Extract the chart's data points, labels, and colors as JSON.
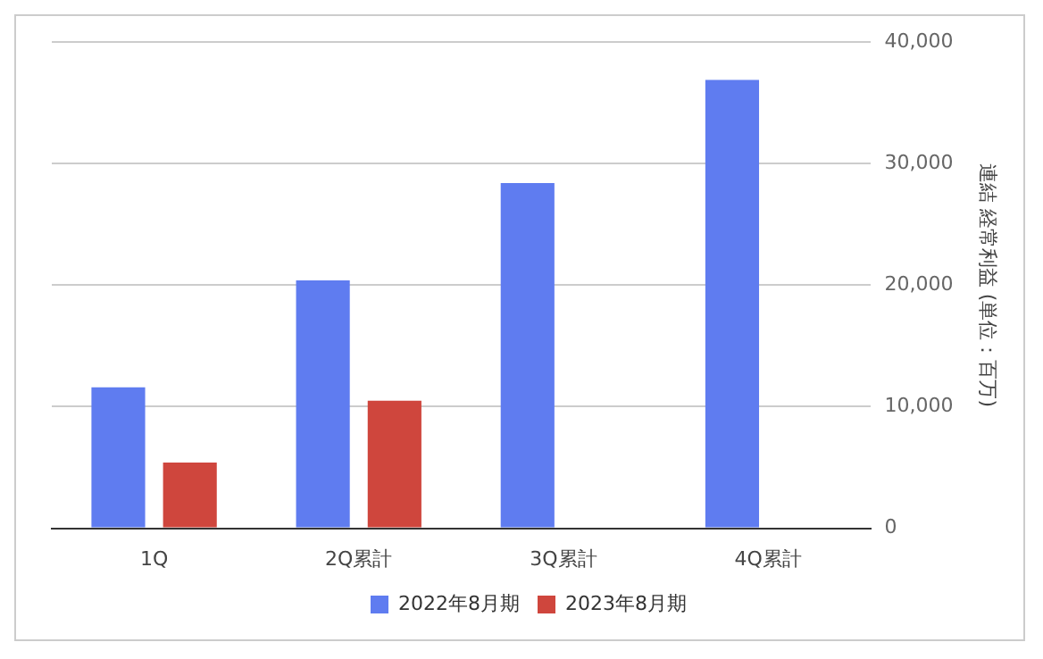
{
  "chart_data": {
    "type": "bar",
    "categories": [
      "1Q",
      "2Q累計",
      "3Q累計",
      "4Q累計"
    ],
    "series": [
      {
        "name": "2022年8月期",
        "color": "#5f7cf0",
        "values": [
          11600,
          20400,
          28400,
          36900
        ]
      },
      {
        "name": "2023年8月期",
        "color": "#cf463d",
        "values": [
          5400,
          10500,
          null,
          null
        ]
      }
    ],
    "ylabel": "連結 経常利益 (単位：百万)",
    "ylim": [
      0,
      40000
    ],
    "yticks": [
      {
        "value": 0,
        "label": "0"
      },
      {
        "value": 10000,
        "label": "10,000"
      },
      {
        "value": 20000,
        "label": "20,000"
      },
      {
        "value": 30000,
        "label": "30,000"
      },
      {
        "value": 40000,
        "label": "40,000"
      }
    ],
    "grid": "y",
    "legend": "bottom"
  }
}
